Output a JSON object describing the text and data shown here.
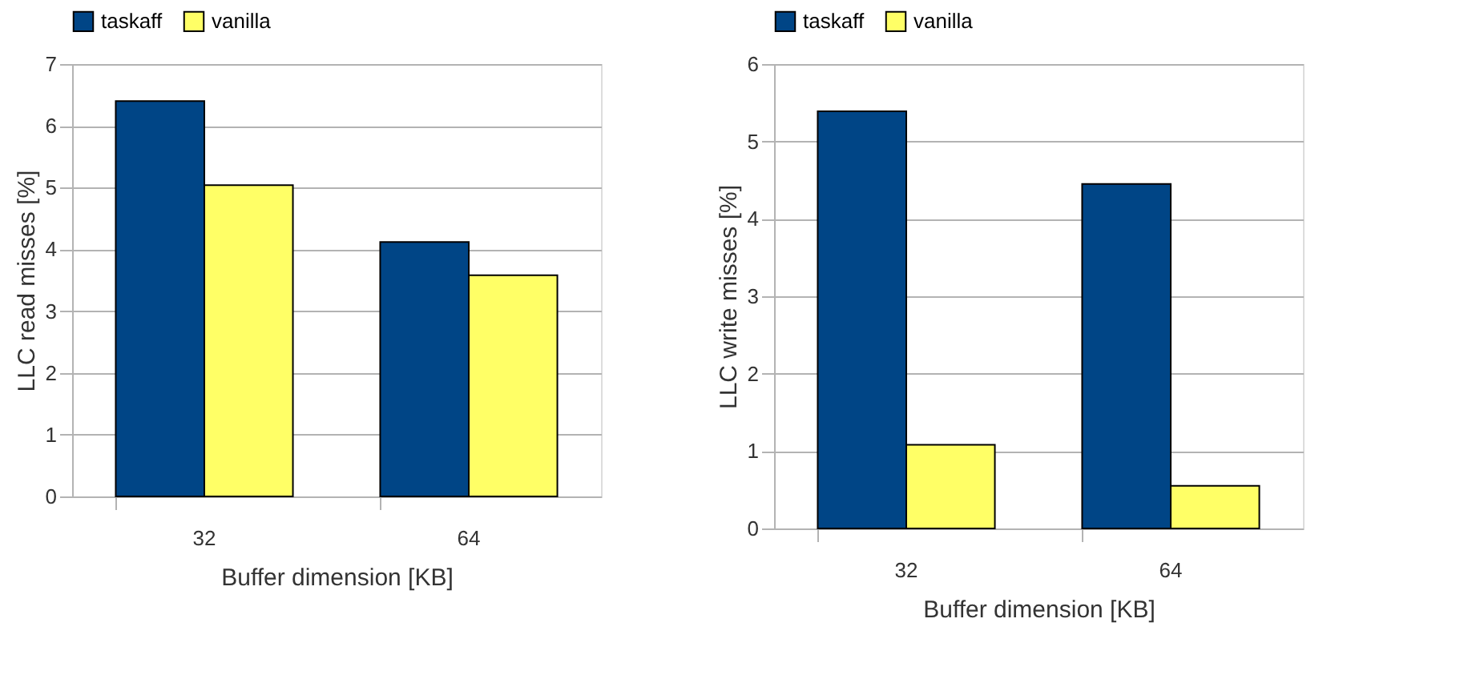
{
  "chart_data": [
    {
      "type": "bar",
      "xlabel": "Buffer dimension [KB]",
      "ylabel": "LLC read misses [%]",
      "categories": [
        "32",
        "64"
      ],
      "series": [
        {
          "name": "taskaff",
          "color": "#004586",
          "values": [
            6.4,
            4.12
          ]
        },
        {
          "name": "vanilla",
          "color": "#ffff66",
          "values": [
            5.04,
            3.58
          ]
        }
      ],
      "ylim": [
        0,
        7
      ],
      "yticks": [
        0,
        1,
        2,
        3,
        4,
        5,
        6,
        7
      ],
      "grid": "y",
      "legend": "top"
    },
    {
      "type": "bar",
      "xlabel": "Buffer dimension [KB]",
      "ylabel": "LLC write misses [%]",
      "categories": [
        "32",
        "64"
      ],
      "series": [
        {
          "name": "taskaff",
          "color": "#004586",
          "values": [
            5.39,
            4.45
          ]
        },
        {
          "name": "vanilla",
          "color": "#ffff66",
          "values": [
            1.08,
            0.55
          ]
        }
      ],
      "ylim": [
        0,
        6
      ],
      "yticks": [
        0,
        1,
        2,
        3,
        4,
        5,
        6
      ],
      "grid": "y",
      "legend": "top"
    }
  ]
}
